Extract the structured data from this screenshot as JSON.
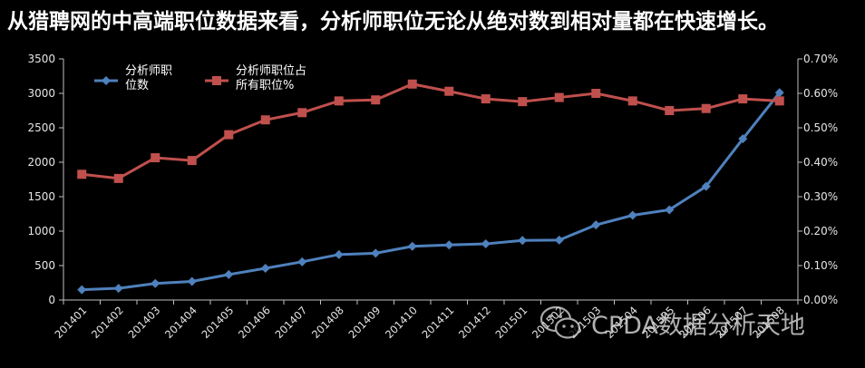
{
  "headline": "从猎聘网的中高端职位数据来看，分析师职位无论从绝对数到相对量都在快速增长。",
  "watermark": {
    "text": "CPDA数据分析天地",
    "icon": "wechat-icon"
  },
  "colors": {
    "background": "#000000",
    "series1": "#4f81bd",
    "series2": "#c0504d",
    "text": "#e6e6e6"
  },
  "chart_data": {
    "type": "line",
    "title": "",
    "categories": [
      "201401",
      "201402",
      "201403",
      "201404",
      "201405",
      "201406",
      "201407",
      "201408",
      "201409",
      "201410",
      "201411",
      "201412",
      "201501",
      "201502",
      "201503",
      "201504",
      "201505",
      "201506",
      "201507",
      "201508"
    ],
    "series": [
      {
        "name": "分析师职位数",
        "legend_lines": [
          "分析师职",
          "位数"
        ],
        "axis": "left",
        "marker": "diamond",
        "values": [
          150,
          170,
          240,
          270,
          370,
          460,
          555,
          660,
          680,
          780,
          800,
          815,
          865,
          870,
          1090,
          1230,
          1310,
          1650,
          2340,
          3010
        ]
      },
      {
        "name": "分析师职位占所有职位%",
        "legend_lines": [
          "分析师职位占",
          "所有职位%"
        ],
        "axis": "right",
        "marker": "square",
        "values": [
          0.365,
          0.353,
          0.413,
          0.405,
          0.48,
          0.523,
          0.544,
          0.578,
          0.581,
          0.627,
          0.606,
          0.584,
          0.576,
          0.588,
          0.6,
          0.578,
          0.55,
          0.556,
          0.584,
          0.578
        ]
      }
    ],
    "y_left": {
      "min": 0,
      "max": 3500,
      "ticks": [
        "0",
        "500",
        "1000",
        "1500",
        "2000",
        "2500",
        "3000",
        "3500"
      ]
    },
    "y_right": {
      "min": 0,
      "max": 0.7,
      "ticks": [
        "0.00%",
        "0.10%",
        "0.20%",
        "0.30%",
        "0.40%",
        "0.50%",
        "0.60%",
        "0.70%"
      ]
    },
    "grid": false,
    "legend_position": "top-left"
  }
}
